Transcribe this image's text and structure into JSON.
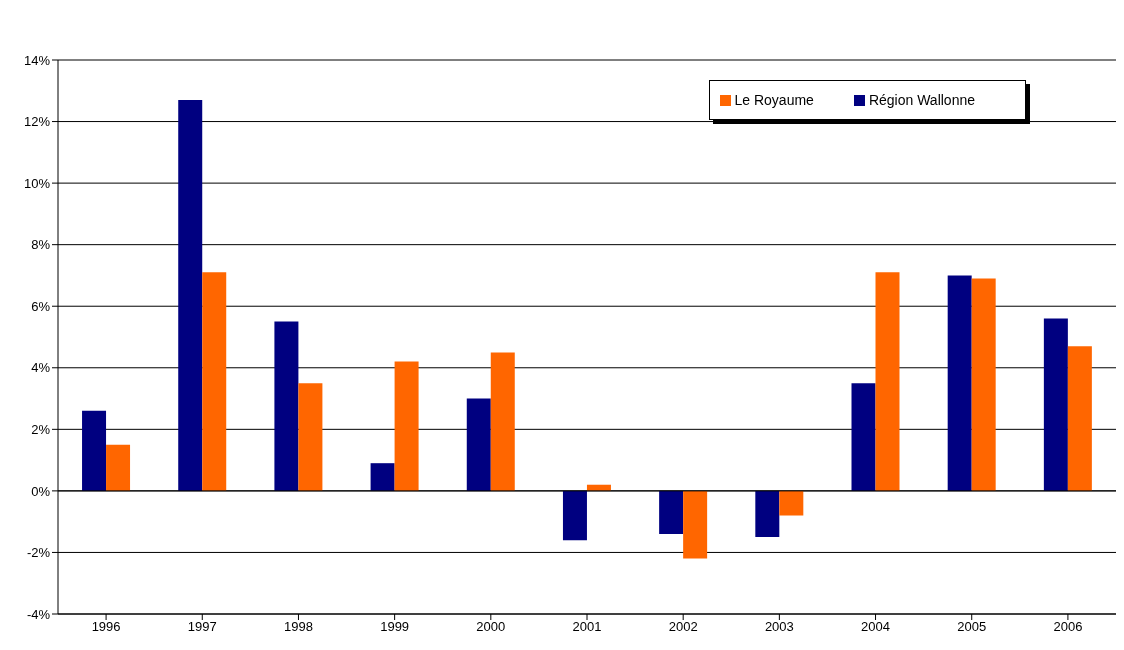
{
  "chart_data": {
    "type": "bar",
    "categories": [
      "1996",
      "1997",
      "1998",
      "1999",
      "2000",
      "2001",
      "2002",
      "2003",
      "2004",
      "2005",
      "2006"
    ],
    "series": [
      {
        "name": "Région Wallonne",
        "color": "#000080",
        "values": [
          2.6,
          12.7,
          5.5,
          0.9,
          3.0,
          -1.6,
          -1.4,
          -1.5,
          3.5,
          7.0,
          5.6
        ]
      },
      {
        "name": "Le Royaume",
        "color": "#ff6600",
        "values": [
          1.5,
          7.1,
          3.5,
          4.2,
          4.5,
          0.2,
          -2.2,
          -0.8,
          7.1,
          6.9,
          4.7
        ]
      }
    ],
    "ylim": [
      -4,
      14
    ],
    "yticks": [
      {
        "value": -4,
        "label": "-4%"
      },
      {
        "value": -2,
        "label": "-2%"
      },
      {
        "value": 0,
        "label": "0%"
      },
      {
        "value": 2,
        "label": "2%"
      },
      {
        "value": 4,
        "label": "4%"
      },
      {
        "value": 6,
        "label": "6%"
      },
      {
        "value": 8,
        "label": "8%"
      },
      {
        "value": 10,
        "label": "10%"
      },
      {
        "value": 12,
        "label": "12%"
      },
      {
        "value": 14,
        "label": "14%"
      }
    ],
    "grid": "y",
    "legend": "top right"
  }
}
